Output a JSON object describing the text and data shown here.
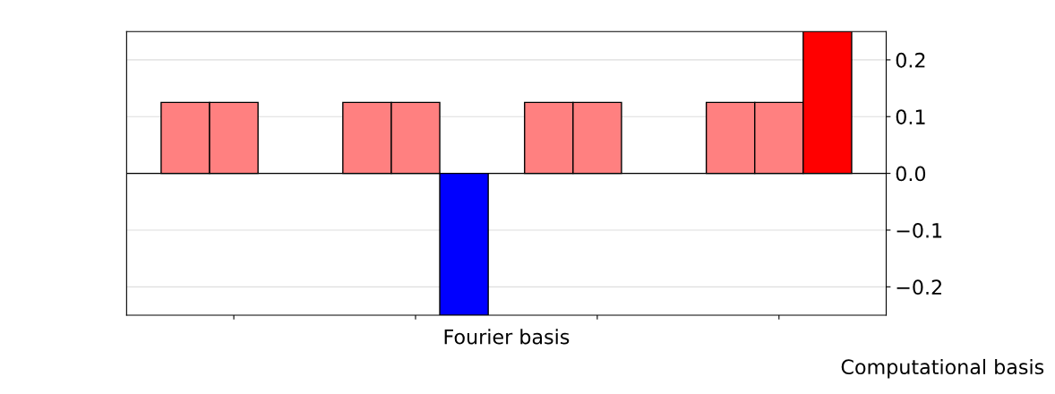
{
  "chart_data": {
    "type": "bar",
    "xlabel": "Fourier basis",
    "annotations": [
      "Computational basis"
    ],
    "categories": [
      null,
      null,
      null,
      null
    ],
    "series": [
      {
        "colors": [
          "#ff8080",
          "#ff8080",
          "#ff8080",
          "#ff8080"
        ],
        "values": [
          0.125,
          0.125,
          0.125,
          0.125
        ]
      },
      {
        "colors": [
          "#ff8080",
          "#ff8080",
          "#ff8080",
          "#ff8080"
        ],
        "values": [
          0.125,
          0.125,
          0.125,
          0.125
        ]
      },
      {
        "colors": [
          "#a0a0a0",
          "#0000ff",
          "#a0a0a0",
          "#ff0000"
        ],
        "values": [
          0,
          -0.25,
          0,
          0.25
        ]
      }
    ],
    "ylim": [
      -0.25,
      0.25
    ],
    "yticks": [
      {
        "value": -0.2,
        "label": "−0.2"
      },
      {
        "value": -0.1,
        "label": "−0.1"
      },
      {
        "value": 0,
        "label": "0.0"
      },
      0.1,
      0.2
    ],
    "grid": "y"
  }
}
